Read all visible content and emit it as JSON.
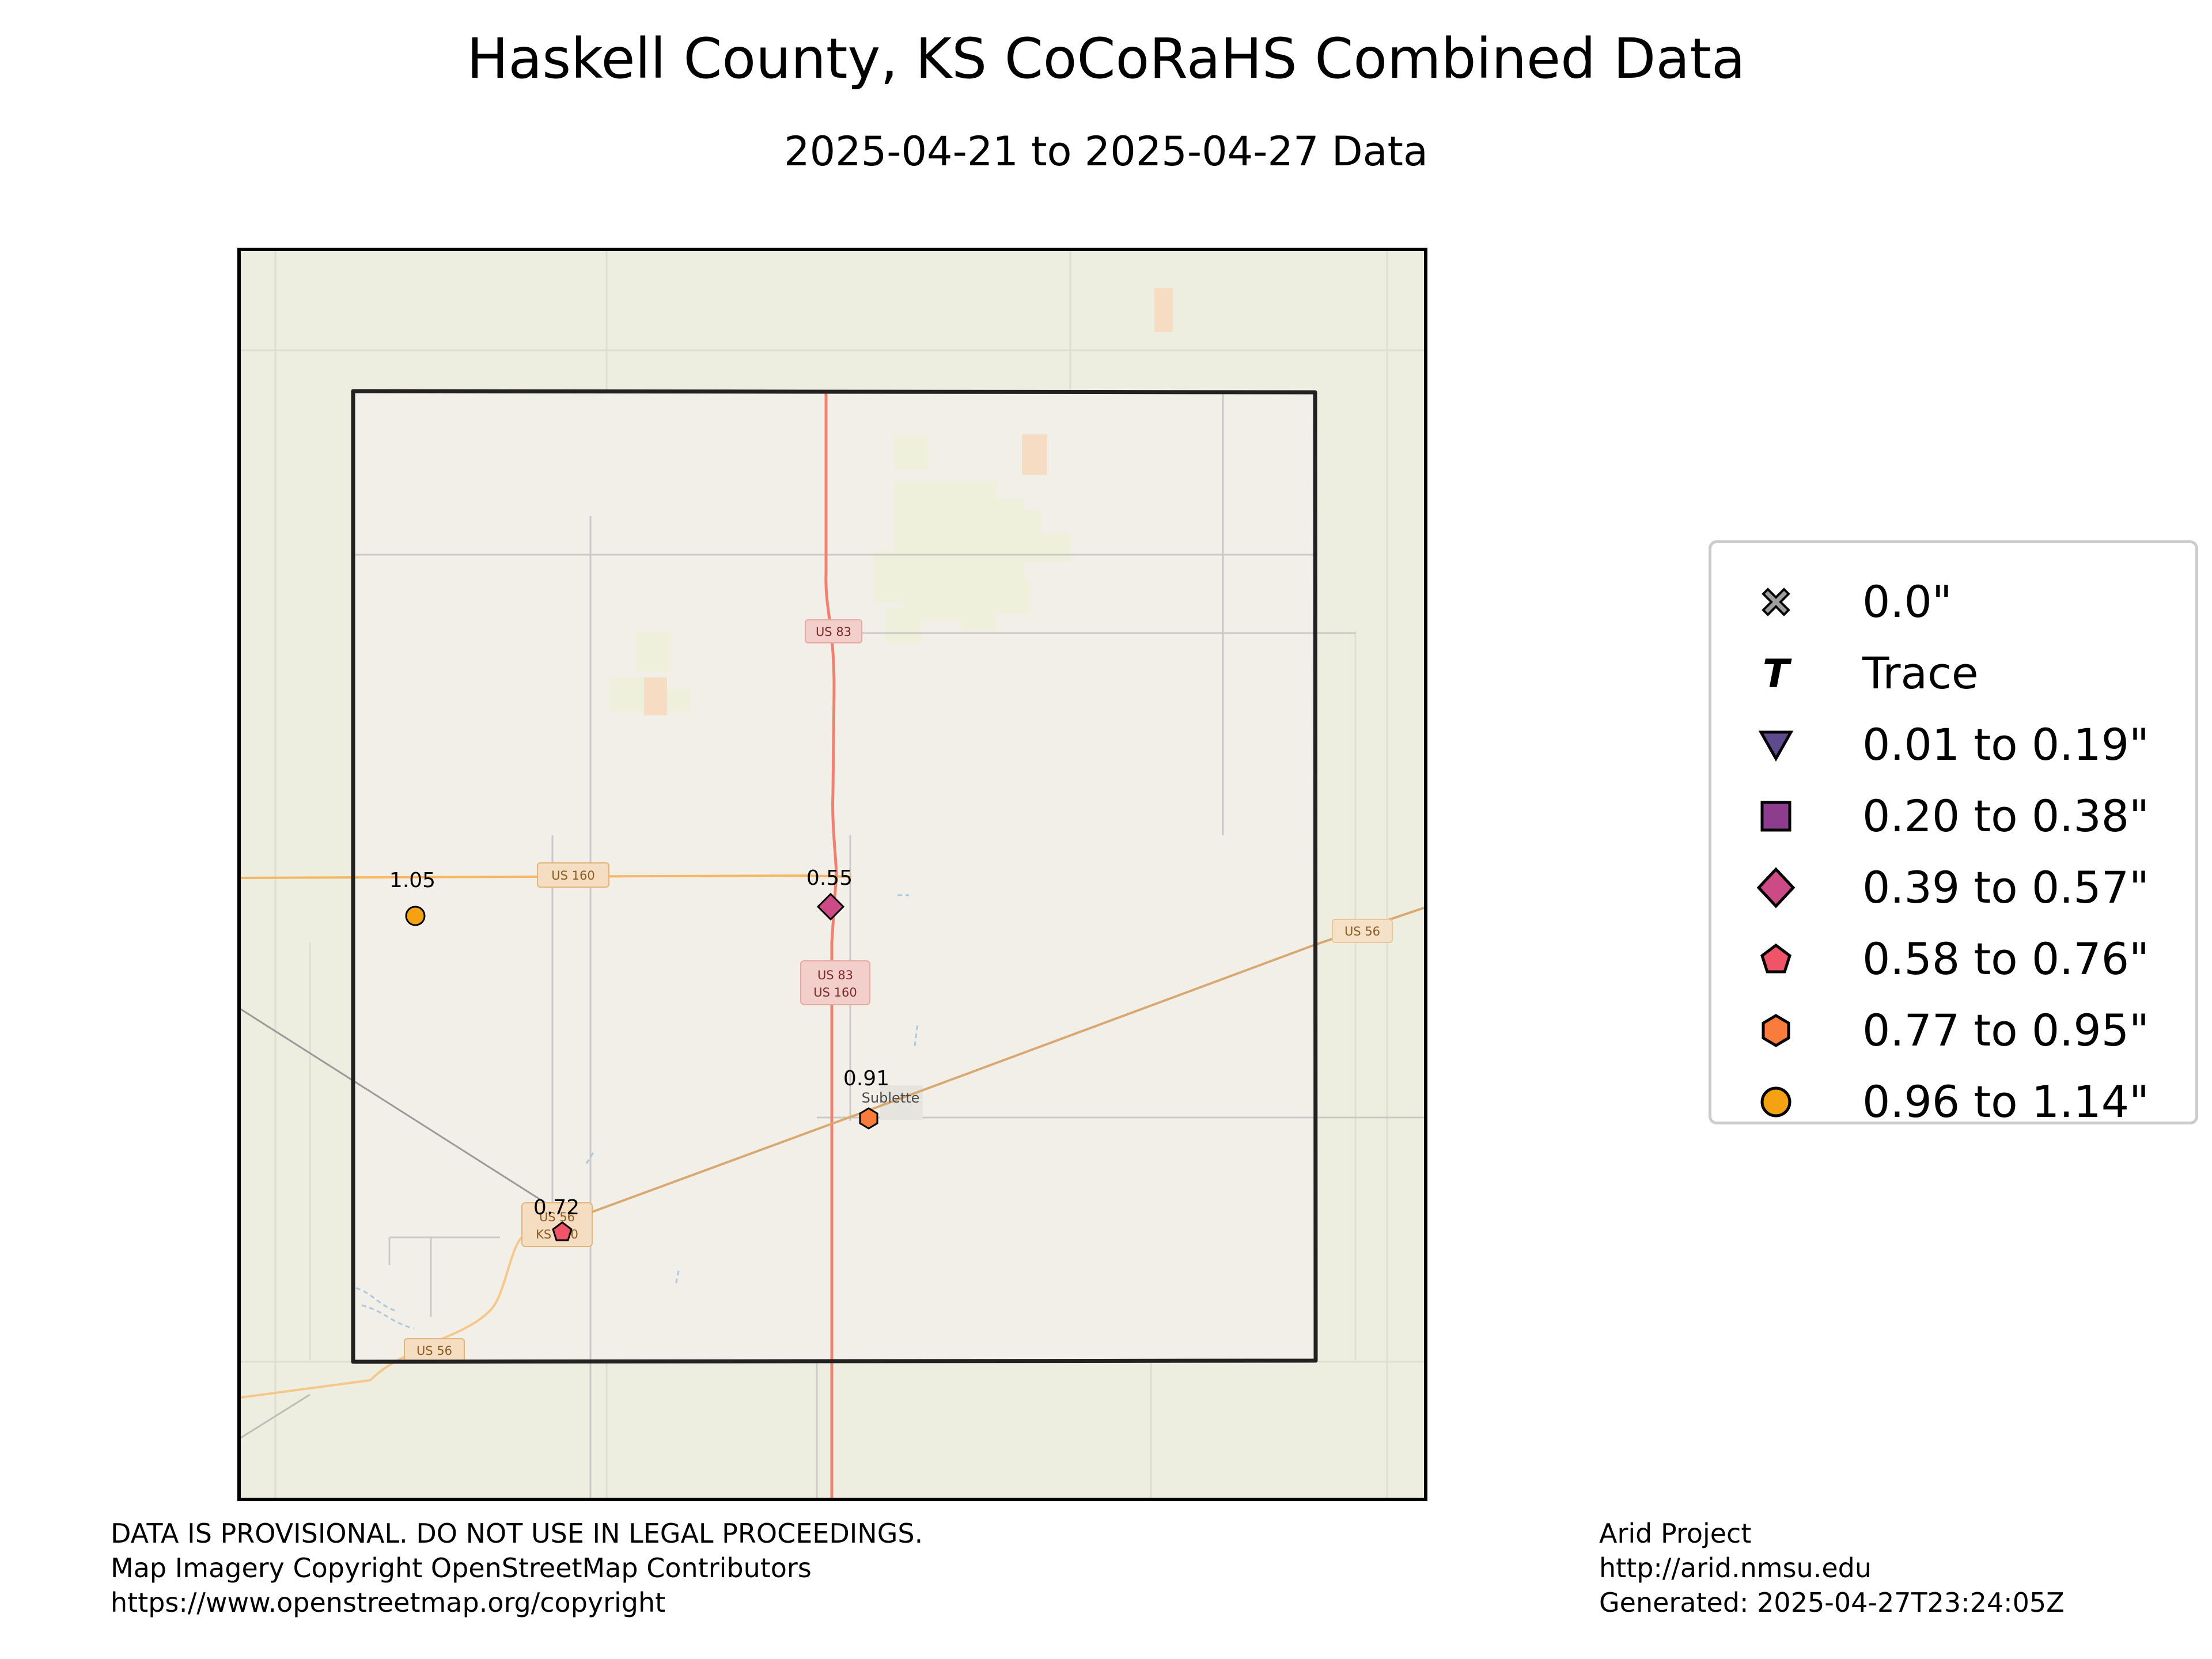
{
  "title": "Haskell County, KS CoCoRaHS Combined Data",
  "subtitle": "2025-04-21 to 2025-04-27 Data",
  "colors": {
    "map_background": "#edeee0",
    "county_fill": "#f2efe9",
    "county_border": "#222222",
    "highway_red": "#f08070",
    "highway_orange": "#f5b860",
    "minor_road": "#c9c9c9",
    "water": "#aac8e0"
  },
  "map": {
    "place_labels": [
      "Sublette"
    ],
    "route_labels": [
      {
        "text": "US 83",
        "style": "red"
      },
      {
        "text": "US 160",
        "style": "orange"
      },
      {
        "text": "US 83",
        "style": "red"
      },
      {
        "text": "US 160",
        "style": "red"
      },
      {
        "text": "US 56",
        "style": "orange"
      },
      {
        "text": "US 56",
        "style": "orange"
      },
      {
        "text": "KS 190",
        "style": "orange"
      },
      {
        "text": "US 56",
        "style": "orange"
      }
    ],
    "stations": [
      {
        "value": "0.55",
        "category": "0.39 to 0.57\""
      },
      {
        "value": "1.05",
        "category": "0.96 to 1.14\""
      },
      {
        "value": "0.91",
        "category": "0.77 to 0.95\""
      },
      {
        "value": "0.72",
        "category": "0.58 to 0.76\""
      }
    ]
  },
  "legend": {
    "items": [
      {
        "label": "0.0\"",
        "symbol": "x-icon",
        "color": "#9e9e9e"
      },
      {
        "label": "Trace",
        "symbol": "trace-t-icon",
        "color": "#000000"
      },
      {
        "label": "0.01 to 0.19\"",
        "symbol": "triangle-down-icon",
        "color": "#5e4b8f"
      },
      {
        "label": "0.20 to 0.38\"",
        "symbol": "square-icon",
        "color": "#8e3d8e"
      },
      {
        "label": "0.39 to 0.57\"",
        "symbol": "diamond-icon",
        "color": "#cc4a86"
      },
      {
        "label": "0.58 to 0.76\"",
        "symbol": "pentagon-icon",
        "color": "#f05468"
      },
      {
        "label": "0.77 to 0.95\"",
        "symbol": "hexagon-icon",
        "color": "#f97c3c"
      },
      {
        "label": "0.96 to 1.14\"",
        "symbol": "circle-icon",
        "color": "#f5a212"
      }
    ]
  },
  "footer": {
    "left": [
      "DATA IS PROVISIONAL. DO NOT USE IN LEGAL PROCEEDINGS.",
      "Map Imagery Copyright OpenStreetMap Contributors",
      "https://www.openstreetmap.org/copyright"
    ],
    "right": [
      "Arid Project",
      "http://arid.nmsu.edu",
      "Generated: 2025-04-27T23:24:05Z"
    ]
  }
}
